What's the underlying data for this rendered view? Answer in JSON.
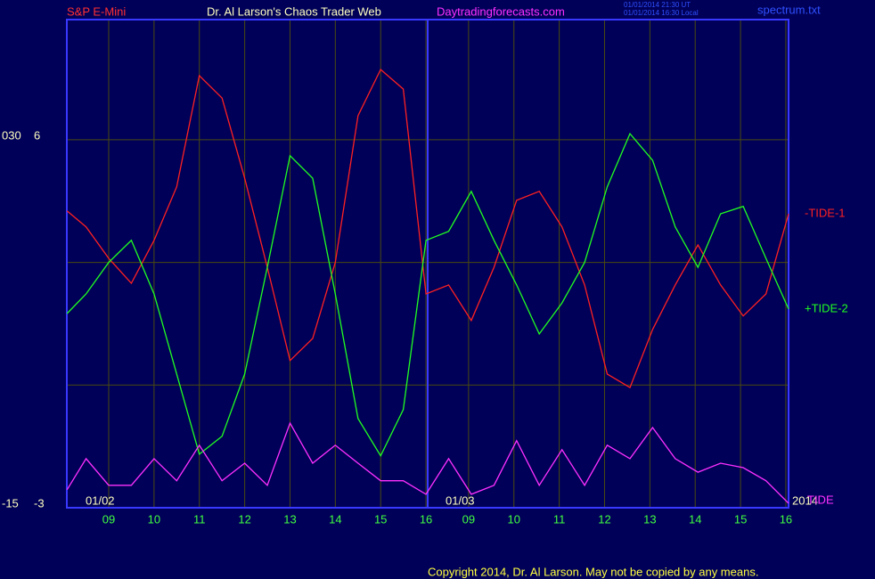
{
  "chart_data": {
    "type": "line",
    "instrument": "S&P E-Mini",
    "title": "Dr. Al Larson's Chaos Trader Web",
    "website": "Daytradingforecasts.com",
    "timestamps": [
      "01/01/2014 21:30 UT",
      "01/01/2014 16:30 Local"
    ],
    "file": "spectrum.txt",
    "date_labels": [
      "01/02",
      "01/03",
      "2014"
    ],
    "copyright": "Copyright 2014, Dr. Al Larson. May not be copied by any means.",
    "x": [
      -0.92,
      -0.5,
      0,
      0.5,
      1,
      1.5,
      2,
      2.5,
      3,
      3.5,
      4,
      4.5,
      5,
      5.5,
      6,
      6.5,
      7,
      7.5,
      8,
      8.5,
      9,
      9.5,
      10,
      10.5,
      11,
      11.5,
      12,
      12.5,
      13,
      13.5,
      14,
      14.5,
      15
    ],
    "xlim": [
      -0.924,
      15.0
    ],
    "xticks": [
      {
        "value": 0,
        "label": "09"
      },
      {
        "value": 1,
        "label": "10"
      },
      {
        "value": 2,
        "label": "11"
      },
      {
        "value": 3,
        "label": "12"
      },
      {
        "value": 4,
        "label": "13"
      },
      {
        "value": 5,
        "label": "14"
      },
      {
        "value": 6,
        "label": "15"
      },
      {
        "value": 7,
        "label": "16"
      },
      {
        "value": 7.94,
        "label": "09"
      },
      {
        "value": 8.94,
        "label": "10"
      },
      {
        "value": 9.94,
        "label": "11"
      },
      {
        "value": 10.94,
        "label": "12"
      },
      {
        "value": 11.94,
        "label": "13"
      },
      {
        "value": 12.94,
        "label": "14"
      },
      {
        "value": 13.94,
        "label": "15"
      },
      {
        "value": 14.94,
        "label": "16"
      }
    ],
    "ylim": [
      -3,
      8.94
    ],
    "yticks": [
      -3,
      6
    ],
    "grid_lines": [
      0,
      3,
      6
    ],
    "y2lim": [
      -15,
      44.7
    ],
    "y2ticks": [
      -15,
      {
        "value": 30,
        "label": "030"
      }
    ],
    "series": [
      {
        "name": "-TIDE-1",
        "color": "#ff2020",
        "values": [
          4.26,
          3.87,
          3.1,
          2.49,
          3.54,
          4.85,
          7.57,
          7.02,
          5.06,
          2.88,
          0.6,
          1.14,
          3.0,
          6.59,
          7.72,
          7.24,
          2.23,
          2.45,
          1.58,
          2.88,
          4.52,
          4.74,
          3.87,
          2.45,
          0.27,
          -0.06,
          1.36,
          2.45,
          3.43,
          2.45,
          1.69,
          2.23,
          4.19
        ]
      },
      {
        "name": "+TIDE-2",
        "color": "#20ff20",
        "values": [
          1.75,
          2.23,
          3.0,
          3.54,
          2.23,
          0.27,
          -1.69,
          -1.25,
          0.27,
          2.88,
          5.61,
          5.06,
          2.23,
          -0.82,
          -1.73,
          -0.6,
          3.54,
          3.76,
          4.74,
          3.54,
          2.45,
          1.25,
          2.01,
          3.0,
          4.85,
          6.15,
          5.5,
          3.87,
          2.88,
          4.19,
          4.37,
          3.1,
          1.86
        ]
      },
      {
        "name": "TIDE",
        "color": "#ff30ff",
        "values": [
          -2.56,
          -1.8,
          -2.45,
          -2.45,
          -1.8,
          -2.34,
          -1.47,
          -2.34,
          -1.91,
          -2.45,
          -0.93,
          -1.91,
          -1.47,
          -1.91,
          -2.34,
          -2.34,
          -2.67,
          -1.8,
          -2.67,
          -2.45,
          -1.36,
          -2.45,
          -1.58,
          -2.45,
          -1.47,
          -1.8,
          -1.04,
          -1.8,
          -2.13,
          -1.91,
          -2.02,
          -2.34,
          -2.89
        ]
      }
    ]
  }
}
